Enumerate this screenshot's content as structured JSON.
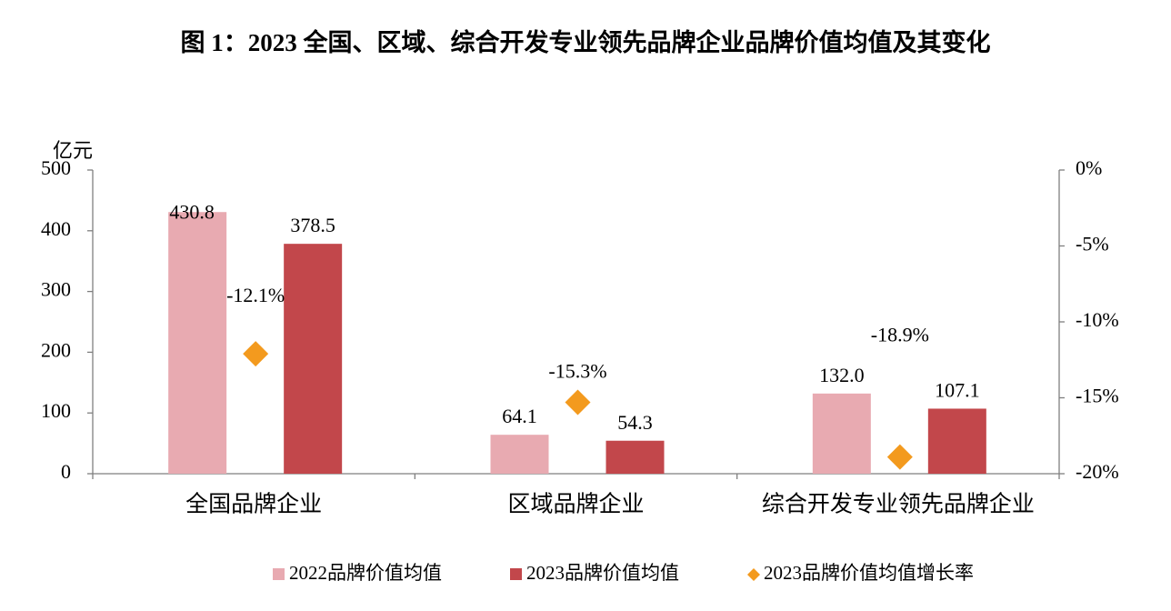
{
  "chart_data": {
    "type": "bar",
    "title": "图 1：2023 全国、区域、综合开发专业领先品牌企业品牌价值均值及其变化",
    "y_label": "亿元",
    "categories": [
      "全国品牌企业",
      "区域品牌企业",
      "综合开发专业领先品牌企业"
    ],
    "series": [
      {
        "name": "2022品牌价值均值",
        "color": "#e8aab1",
        "type": "bar",
        "values": [
          430.8,
          64.1,
          132.0
        ],
        "value_labels": [
          "430.8",
          "64.1",
          "132.0"
        ]
      },
      {
        "name": "2023品牌价值均值",
        "color": "#c2474b",
        "type": "bar",
        "values": [
          378.5,
          54.3,
          107.1
        ]
      },
      {
        "name": "2023品牌价值均值增长率",
        "color": "#f39a1e",
        "type": "scatter",
        "axis": "y2",
        "values": [
          -12.1,
          -15.3,
          -18.9
        ],
        "value_labels": [
          "-12.1%",
          "-15.3%",
          "-18.9%"
        ]
      }
    ],
    "ylim": [
      0,
      500
    ],
    "yticks": [
      0,
      100,
      200,
      300,
      400,
      500
    ],
    "y2lim": [
      -20,
      0
    ],
    "y2ticks": [
      {
        "value": 0,
        "label": "0%"
      },
      {
        "value": -5,
        "label": "-5%"
      },
      {
        "value": -10,
        "label": "-10%"
      },
      {
        "value": -15,
        "label": "-15%"
      },
      {
        "value": -20,
        "label": "-20%"
      }
    ],
    "legend": "bottom",
    "grid": false
  }
}
